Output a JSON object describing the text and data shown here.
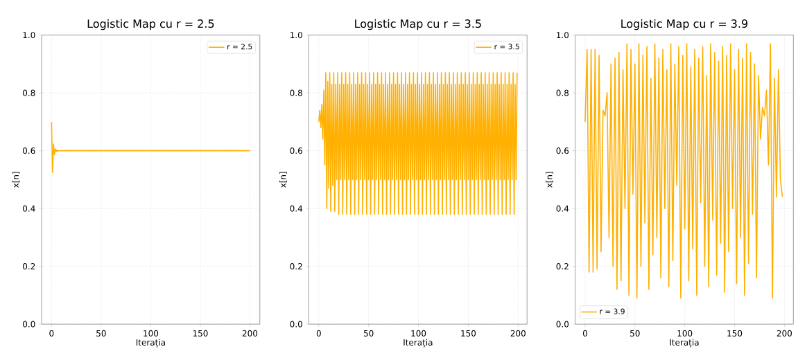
{
  "chart_data": [
    {
      "type": "line",
      "title": "Logistic Map cu r = 2.5",
      "xlabel": "Iterația",
      "ylabel": "x[n]",
      "x": [
        0,
        1,
        2,
        3,
        4,
        5,
        6,
        7,
        8,
        9,
        10,
        200
      ],
      "series": [
        {
          "name": "r = 2.5",
          "color": "#ffb000",
          "values": [
            0.7,
            0.525,
            0.623,
            0.587,
            0.606,
            0.597,
            0.602,
            0.599,
            0.6,
            0.6,
            0.6,
            0.6
          ]
        }
      ],
      "xlim": [
        -10,
        210
      ],
      "ylim": [
        0,
        1
      ],
      "xticks": [
        0,
        50,
        100,
        150,
        200
      ],
      "yticks": [
        {
          "value": 0,
          "label": "0.0"
        },
        {
          "value": 0.2,
          "label": "0.2"
        },
        {
          "value": 0.4,
          "label": "0.4"
        },
        {
          "value": 0.6,
          "label": "0.6"
        },
        {
          "value": 0.8,
          "label": "0.8"
        },
        {
          "value": 1,
          "label": "1.0"
        }
      ],
      "grid": true,
      "legend": "top right"
    },
    {
      "type": "line",
      "title": "Logistic Map cu r = 3.5",
      "xlabel": "Iterația",
      "ylabel": "x[n]",
      "x": [
        0,
        1,
        2,
        3,
        4,
        5,
        6,
        7,
        8,
        9,
        10,
        11,
        12,
        13,
        14,
        15,
        16,
        17,
        18,
        19,
        20,
        21,
        22,
        23,
        24,
        25,
        26,
        27,
        28,
        29,
        30,
        31,
        32,
        33,
        34,
        35,
        36,
        37,
        38,
        39,
        40,
        41,
        42,
        43,
        44,
        45,
        46,
        47,
        48,
        49,
        50,
        51,
        52,
        53,
        54,
        55,
        56,
        57,
        58,
        59,
        60,
        61,
        62,
        63,
        64,
        65,
        66,
        67,
        68,
        69,
        70,
        71,
        72,
        73,
        74,
        75,
        76,
        77,
        78,
        79,
        80,
        81,
        82,
        83,
        84,
        85,
        86,
        87,
        88,
        89,
        90,
        91,
        92,
        93,
        94,
        95,
        96,
        97,
        98,
        99,
        100,
        101,
        102,
        103,
        104,
        105,
        106,
        107,
        108,
        109,
        110,
        111,
        112,
        113,
        114,
        115,
        116,
        117,
        118,
        119,
        120,
        121,
        122,
        123,
        124,
        125,
        126,
        127,
        128,
        129,
        130,
        131,
        132,
        133,
        134,
        135,
        136,
        137,
        138,
        139,
        140,
        141,
        142,
        143,
        144,
        145,
        146,
        147,
        148,
        149,
        150,
        151,
        152,
        153,
        154,
        155,
        156,
        157,
        158,
        159,
        160,
        161,
        162,
        163,
        164,
        165,
        166,
        167,
        168,
        169,
        170,
        171,
        172,
        173,
        174,
        175,
        176,
        177,
        178,
        179,
        180,
        181,
        182,
        183,
        184,
        185,
        186,
        187,
        188,
        189,
        190,
        191,
        192,
        193,
        194,
        195,
        196,
        197,
        198,
        199
      ],
      "series": [
        {
          "name": "r = 3.5",
          "color": "#ffb000",
          "values": [
            0.7,
            0.74,
            0.68,
            0.76,
            0.64,
            0.81,
            0.55,
            0.87,
            0.4,
            0.84,
            0.47,
            0.87,
            0.39,
            0.83,
            0.48,
            0.87,
            0.39,
            0.83,
            0.5,
            0.87,
            0.38,
            0.83,
            0.5,
            0.87,
            0.38,
            0.83,
            0.5,
            0.87,
            0.38,
            0.83,
            0.5,
            0.87,
            0.38,
            0.83,
            0.5,
            0.87,
            0.38,
            0.83,
            0.5,
            0.87,
            0.38,
            0.83,
            0.5,
            0.87,
            0.38,
            0.83,
            0.5,
            0.87,
            0.38,
            0.83,
            0.5,
            0.87,
            0.38,
            0.83,
            0.5,
            0.87,
            0.38,
            0.83,
            0.5,
            0.87,
            0.38,
            0.83,
            0.5,
            0.87,
            0.38,
            0.83,
            0.5,
            0.87,
            0.38,
            0.83,
            0.5,
            0.87,
            0.38,
            0.83,
            0.5,
            0.87,
            0.38,
            0.83,
            0.5,
            0.87,
            0.38,
            0.83,
            0.5,
            0.87,
            0.38,
            0.83,
            0.5,
            0.87,
            0.38,
            0.83,
            0.5,
            0.87,
            0.38,
            0.83,
            0.5,
            0.87,
            0.38,
            0.83,
            0.5,
            0.87,
            0.38,
            0.83,
            0.5,
            0.87,
            0.38,
            0.83,
            0.5,
            0.87,
            0.38,
            0.83,
            0.5,
            0.87,
            0.38,
            0.83,
            0.5,
            0.87,
            0.38,
            0.83,
            0.5,
            0.87,
            0.38,
            0.83,
            0.5,
            0.87,
            0.38,
            0.83,
            0.5,
            0.87,
            0.38,
            0.83,
            0.5,
            0.87,
            0.38,
            0.83,
            0.5,
            0.87,
            0.38,
            0.83,
            0.5,
            0.87,
            0.38,
            0.83,
            0.5,
            0.87,
            0.38,
            0.83,
            0.5,
            0.87,
            0.38,
            0.83,
            0.5,
            0.87,
            0.38,
            0.83,
            0.5,
            0.87,
            0.38,
            0.83,
            0.5,
            0.87,
            0.38,
            0.83,
            0.5,
            0.87,
            0.38,
            0.83,
            0.5,
            0.87,
            0.38,
            0.83,
            0.5,
            0.87,
            0.38,
            0.83,
            0.5,
            0.87,
            0.38,
            0.83,
            0.5,
            0.87,
            0.38,
            0.83,
            0.5,
            0.87,
            0.38,
            0.83,
            0.5,
            0.87,
            0.38,
            0.83,
            0.5,
            0.87,
            0.38,
            0.83,
            0.5,
            0.87,
            0.38,
            0.83,
            0.5,
            0.87
          ]
        }
      ],
      "xlim": [
        -10,
        209
      ],
      "ylim": [
        0,
        1
      ],
      "xticks": [
        0,
        50,
        100,
        150,
        200
      ],
      "yticks": [
        {
          "value": 0,
          "label": "0.0"
        },
        {
          "value": 0.2,
          "label": "0.2"
        },
        {
          "value": 0.4,
          "label": "0.4"
        },
        {
          "value": 0.6,
          "label": "0.6"
        },
        {
          "value": 0.8,
          "label": "0.8"
        },
        {
          "value": 1,
          "label": "1.0"
        }
      ],
      "grid": true,
      "legend": "top right"
    },
    {
      "type": "line",
      "title": "Logistic Map cu r = 3.9",
      "xlabel": "Iterația",
      "ylabel": "x[n]",
      "x": [
        0,
        2,
        4,
        6,
        8,
        10,
        12,
        14,
        16,
        18,
        20,
        22,
        24,
        26,
        28,
        30,
        32,
        34,
        36,
        38,
        40,
        42,
        44,
        46,
        48,
        50,
        52,
        54,
        56,
        58,
        60,
        62,
        64,
        66,
        68,
        70,
        72,
        74,
        76,
        78,
        80,
        82,
        84,
        86,
        88,
        90,
        92,
        94,
        96,
        98,
        100,
        102,
        104,
        106,
        108,
        110,
        112,
        114,
        116,
        118,
        120,
        122,
        124,
        126,
        128,
        130,
        132,
        134,
        136,
        138,
        140,
        142,
        144,
        146,
        148,
        150,
        152,
        154,
        156,
        158,
        160,
        162,
        164,
        166,
        168,
        170,
        172,
        174,
        176,
        178,
        180,
        182,
        184,
        186,
        188,
        190,
        192,
        194,
        196,
        198
      ],
      "series": [
        {
          "name": "r = 3.9",
          "color": "#ffb000",
          "values": [
            0.7,
            0.95,
            0.18,
            0.95,
            0.18,
            0.95,
            0.19,
            0.93,
            0.25,
            0.74,
            0.72,
            0.8,
            0.3,
            0.9,
            0.2,
            0.92,
            0.12,
            0.94,
            0.15,
            0.88,
            0.4,
            0.97,
            0.1,
            0.95,
            0.45,
            0.9,
            0.09,
            0.97,
            0.2,
            0.93,
            0.35,
            0.96,
            0.12,
            0.85,
            0.24,
            0.97,
            0.3,
            0.92,
            0.16,
            0.95,
            0.4,
            0.88,
            0.13,
            0.97,
            0.22,
            0.9,
            0.48,
            0.96,
            0.09,
            0.93,
            0.33,
            0.97,
            0.15,
            0.89,
            0.26,
            0.95,
            0.1,
            0.92,
            0.42,
            0.96,
            0.2,
            0.86,
            0.13,
            0.97,
            0.36,
            0.94,
            0.17,
            0.91,
            0.28,
            0.96,
            0.11,
            0.93,
            0.25,
            0.97,
            0.4,
            0.88,
            0.14,
            0.95,
            0.3,
            0.92,
            0.1,
            0.97,
            0.21,
            0.94,
            0.38,
            0.9,
            0.16,
            0.86,
            0.64,
            0.75,
            0.72,
            0.81,
            0.55,
            0.97,
            0.09,
            0.85,
            0.44,
            0.88,
            0.5,
            0.44
          ]
        }
      ],
      "xlim": [
        -10,
        209
      ],
      "ylim": [
        0,
        1
      ],
      "xticks": [
        0,
        50,
        100,
        150,
        200
      ],
      "yticks": [
        {
          "value": 0,
          "label": "0.0"
        },
        {
          "value": 0.2,
          "label": "0.2"
        },
        {
          "value": 0.4,
          "label": "0.4"
        },
        {
          "value": 0.6,
          "label": "0.6"
        },
        {
          "value": 0.8,
          "label": "0.8"
        },
        {
          "value": 1,
          "label": "1.0"
        }
      ],
      "grid": true,
      "legend": "bottom left"
    }
  ]
}
